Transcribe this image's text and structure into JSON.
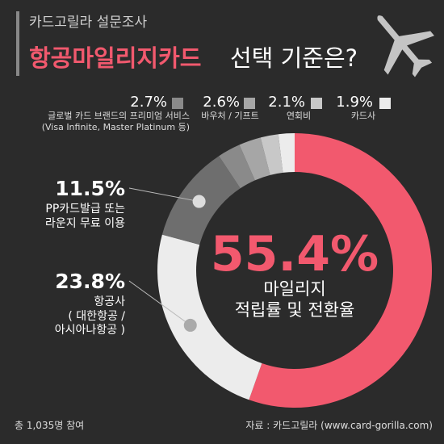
{
  "header": {
    "subtitle": "카드고릴라 설문조사",
    "title_highlight": "항공마일리지카드",
    "title_rest": "선택 기준은?"
  },
  "chart_data": {
    "type": "donut",
    "categories": [
      "마일리지\n적립률 및 전환율",
      "항공사\n( 대한항공 /\n아시아나항공 )",
      "PP카드발급 또는\n라운지 무료 이용",
      "글로벌 카드 브랜드의 프리미엄 서비스\n(Visa Infinite, Master Platinum 등)",
      "바우처 / 기프트",
      "연회비",
      "카드사"
    ],
    "values": [
      55.4,
      23.8,
      11.5,
      2.7,
      2.6,
      2.1,
      1.9
    ],
    "value_labels": [
      "55.4%",
      "23.8%",
      "11.5%",
      "2.7%",
      "2.6%",
      "2.1%",
      "1.9%"
    ],
    "colors": [
      "#f2596e",
      "#ececec",
      "#6e6e6e",
      "#8a8a8a",
      "#a6a6a6",
      "#c8c8c8",
      "#ececec"
    ]
  },
  "footer": {
    "participants": "총 1,035명 참여",
    "source": "자료 : 카드고릴라 (www.card-gorilla.com)"
  }
}
